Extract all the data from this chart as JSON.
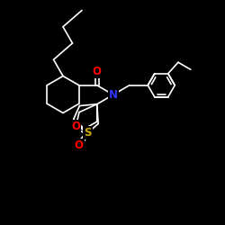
{
  "background_color": "#000000",
  "bond_color": "#ffffff",
  "atom_colors": {
    "O": "#ff0000",
    "N": "#3333ff",
    "S": "#ccaa00",
    "C": "#ffffff"
  },
  "bond_width": 1.2,
  "font_size": 7.5,
  "xlim": [
    0,
    10
  ],
  "ylim": [
    0,
    10
  ]
}
